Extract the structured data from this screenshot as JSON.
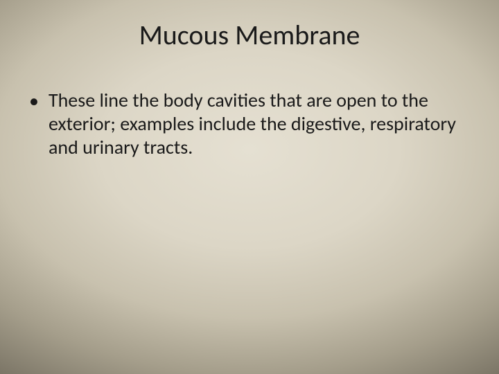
{
  "slide": {
    "title": "Mucous Membrane",
    "bullets": [
      {
        "text": "These line the body cavities that are open to the exterior; examples include the digestive, respiratory and urinary tracts."
      }
    ],
    "title_fontsize": 40,
    "body_fontsize": 28,
    "text_color": "#1a1a1a",
    "background_gradient": {
      "type": "radial",
      "center_color": "#e5e0d2",
      "edge_color": "#7a7465"
    }
  }
}
